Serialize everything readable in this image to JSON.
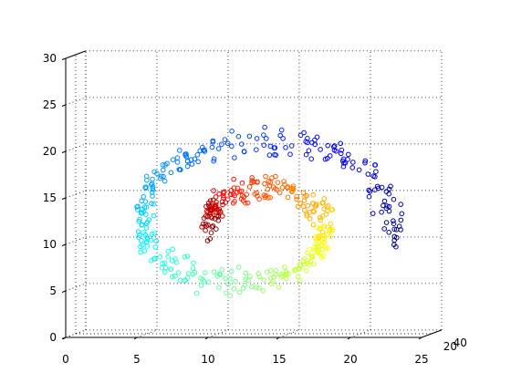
{
  "chart_data": {
    "type": "scatter3d",
    "title": "",
    "xlabel": "",
    "ylabel": "",
    "zlabel": "",
    "xlim": [
      0,
      25
    ],
    "ylim": [
      0,
      40
    ],
    "zlim": [
      0,
      30
    ],
    "grid": true,
    "marker": "circle-open",
    "colormap": "jet (by position along the roll)",
    "x_ticks": [
      "0",
      "5",
      "10",
      "15",
      "20",
      "25"
    ],
    "y_ticks": [
      "0",
      "20",
      "40"
    ],
    "y_ticks_shown": [
      "20",
      "40"
    ],
    "z_ticks": [
      "0",
      "5",
      "10",
      "15",
      "20",
      "25",
      "30"
    ],
    "description_ref": "swiss-roll manifold points",
    "points_sample": [
      [
        3.0,
        20,
        1.0
      ],
      [
        8.0,
        20,
        2.0
      ],
      [
        12.0,
        20,
        1.5
      ],
      [
        17.0,
        20,
        1.5
      ],
      [
        21.0,
        20,
        4.5
      ],
      [
        23.5,
        20,
        9.0
      ],
      [
        23.0,
        20,
        16.0
      ],
      [
        21.0,
        20,
        21.5
      ],
      [
        17.0,
        20,
        25.0
      ],
      [
        12.0,
        20,
        26.0
      ],
      [
        7.0,
        20,
        25.5
      ],
      [
        4.0,
        20,
        21.0
      ],
      [
        1.5,
        20,
        13.0
      ],
      [
        3.0,
        20,
        7.0
      ],
      [
        6.5,
        20,
        4.5
      ],
      [
        10.5,
        20,
        5.5
      ],
      [
        13.0,
        20,
        7.5
      ],
      [
        15.5,
        20,
        11.0
      ],
      [
        16.0,
        20,
        15.5
      ],
      [
        14.0,
        20,
        19.0
      ],
      [
        10.5,
        20,
        20.5
      ],
      [
        7.0,
        20,
        19.5
      ],
      [
        5.0,
        20,
        15.5
      ],
      [
        6.5,
        20,
        11.5
      ],
      [
        10.0,
        20,
        10.0
      ],
      [
        12.5,
        20,
        12.5
      ]
    ]
  }
}
